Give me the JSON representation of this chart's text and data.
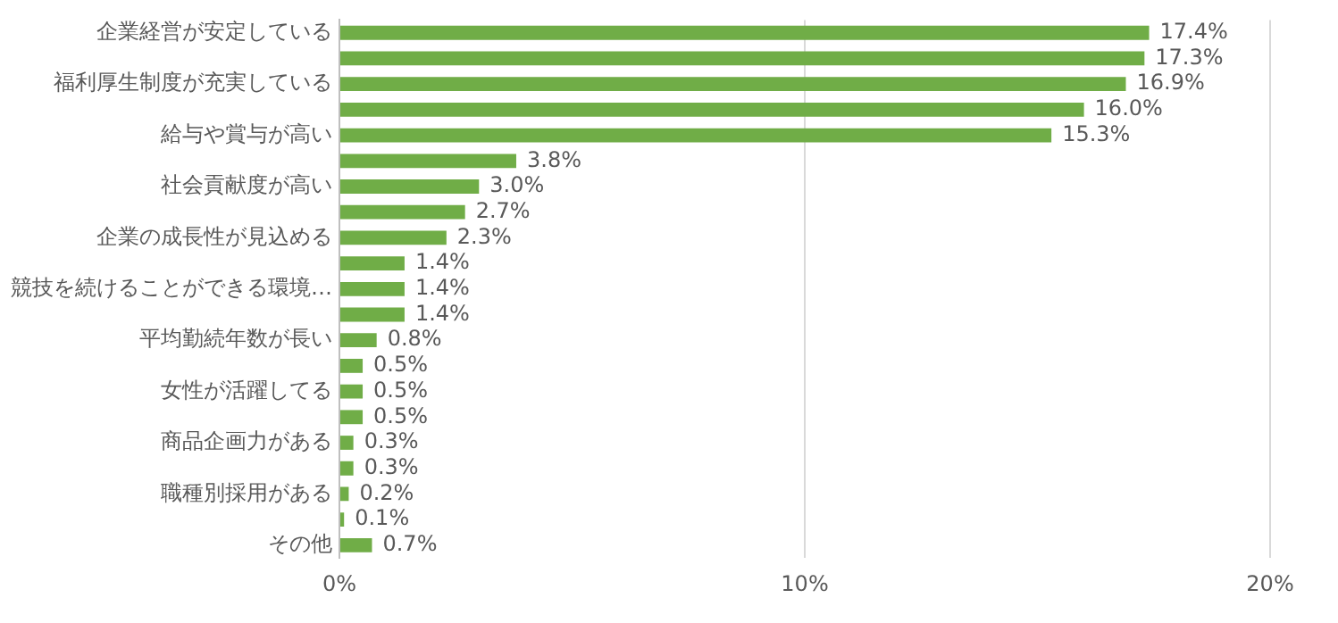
{
  "chart_data": {
    "type": "bar",
    "orientation": "horizontal",
    "categories": [
      "企業経営が安定している",
      null,
      "福利厚生制度が充実している",
      null,
      "給与や賞与が高い",
      null,
      "社会貢献度が高い",
      null,
      "企業の成長性が見込める",
      null,
      "競技を続けることができる環境…",
      null,
      "平均勤続年数が長い",
      null,
      "女性が活躍してる",
      null,
      "商品企画力がある",
      null,
      "職種別採用がある",
      null,
      "その他"
    ],
    "values": [
      17.4,
      17.3,
      16.9,
      16.0,
      15.3,
      3.8,
      3.0,
      2.7,
      2.3,
      1.4,
      1.4,
      1.4,
      0.8,
      0.5,
      0.5,
      0.5,
      0.3,
      0.3,
      0.2,
      0.1,
      0.7
    ],
    "value_labels": [
      "17.4%",
      "17.3%",
      "16.9%",
      "16.0%",
      "15.3%",
      "3.8%",
      "3.0%",
      "2.7%",
      "2.3%",
      "1.4%",
      "1.4%",
      "1.4%",
      "0.8%",
      "0.5%",
      "0.5%",
      "0.5%",
      "0.3%",
      "0.3%",
      "0.2%",
      "0.1%",
      "0.7%"
    ],
    "color": "#70ad47",
    "xlim": [
      0,
      20
    ],
    "xticks": [
      {
        "value": 0,
        "label": "0%"
      },
      {
        "value": 10,
        "label": "10%"
      },
      {
        "value": 20,
        "label": "20%"
      }
    ],
    "grid": "x"
  }
}
